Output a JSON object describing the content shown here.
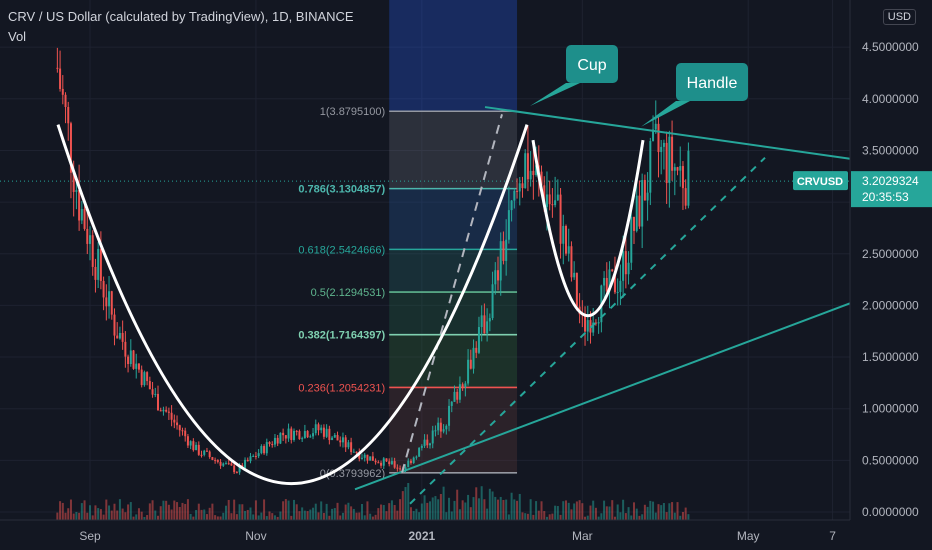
{
  "header": {
    "title": "CRV / US Dollar (calculated by TradingView), 1D, BINANCE",
    "volume_label": "Vol",
    "currency_button": "USD"
  },
  "colors": {
    "background": "#131722",
    "up": "#26a69a",
    "down": "#ef5350",
    "accent": "#26a69a",
    "pattern_curve": "#ffffff"
  },
  "chart_data": {
    "type": "candlestick",
    "title": "CRV / US Dollar (calculated by TradingView), 1D, BINANCE",
    "x_tick_labels": [
      "Sep",
      "Nov",
      "2021",
      "Mar",
      "May",
      "7"
    ],
    "y_tick_labels": [
      "0.0000000",
      "0.5000000",
      "1.0000000",
      "1.5000000",
      "2.0000000",
      "2.5000000",
      "3.0000000",
      "3.5000000",
      "4.0000000",
      "4.5000000"
    ],
    "ylim": [
      -0.05,
      4.75
    ],
    "y_unit": "USD",
    "last_price": {
      "symbol": "CRVUSD",
      "value": "3.2029324",
      "countdown": "20:35:53"
    },
    "fibonacci": [
      {
        "level": "1(3.8795100)",
        "value": 3.87951,
        "highlight": false
      },
      {
        "level": "0.786(3.1304857)",
        "value": 3.1304857,
        "highlight": true
      },
      {
        "level": "0.618(2.5424666)",
        "value": 2.5424666,
        "highlight": false
      },
      {
        "level": "0.5(2.1294531)",
        "value": 2.1294531,
        "highlight": false
      },
      {
        "level": "0.382(1.7164397)",
        "value": 1.7164397,
        "highlight": true
      },
      {
        "level": "0.236(1.2054231)",
        "value": 1.2054231,
        "highlight": false
      },
      {
        "level": "0(0.3793962)",
        "value": 0.3793962,
        "highlight": false
      }
    ],
    "annotations": [
      "Cup",
      "Handle"
    ],
    "series_outline": [
      {
        "date": "2020-08-20",
        "price": 4.3
      },
      {
        "date": "2020-08-28",
        "price": 3.0
      },
      {
        "date": "2020-09-10",
        "price": 1.8
      },
      {
        "date": "2020-09-25",
        "price": 1.1
      },
      {
        "date": "2020-10-10",
        "price": 0.6
      },
      {
        "date": "2020-10-25",
        "price": 0.4
      },
      {
        "date": "2020-11-10",
        "price": 0.75
      },
      {
        "date": "2020-11-25",
        "price": 0.8
      },
      {
        "date": "2020-12-10",
        "price": 0.55
      },
      {
        "date": "2020-12-25",
        "price": 0.42
      },
      {
        "date": "2021-01-10",
        "price": 0.9
      },
      {
        "date": "2021-01-25",
        "price": 1.9
      },
      {
        "date": "2021-02-08",
        "price": 3.4
      },
      {
        "date": "2021-02-20",
        "price": 2.9
      },
      {
        "date": "2021-03-01",
        "price": 1.8
      },
      {
        "date": "2021-03-15",
        "price": 2.3
      },
      {
        "date": "2021-03-28",
        "price": 3.5
      },
      {
        "date": "2021-04-10",
        "price": 3.2
      }
    ]
  }
}
